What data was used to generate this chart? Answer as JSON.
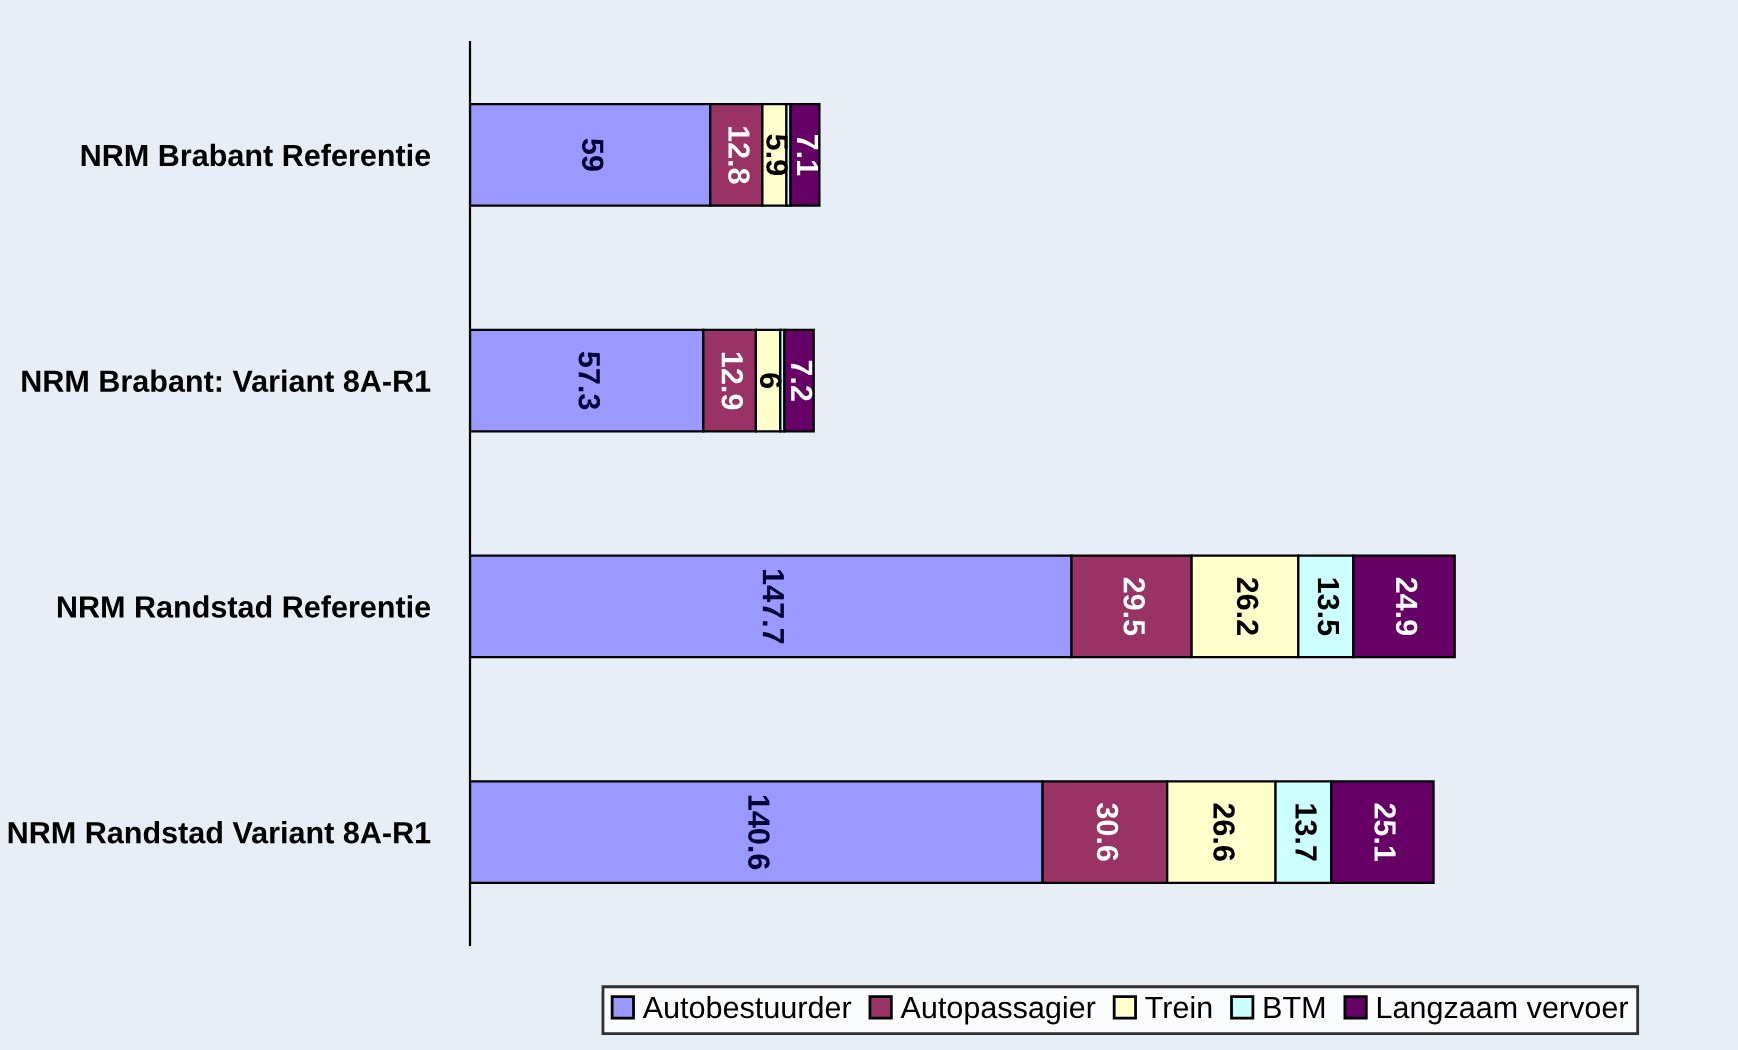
{
  "chart_data": {
    "type": "bar",
    "orientation": "horizontal",
    "stacked": true,
    "data_labels": true,
    "legend": "bottom",
    "grid": false,
    "categories": [
      "NRM Brabant Referentie",
      "NRM Brabant: Variant 8A-R1",
      "NRM Randstad Referentie",
      "NRM Randstad Variant 8A-R1"
    ],
    "series": [
      {
        "name": "Autobestuurder",
        "color": "#9999ff",
        "values": [
          59,
          57.3,
          147.7,
          140.6
        ]
      },
      {
        "name": "Autopassagier",
        "color": "#993366",
        "values": [
          12.8,
          12.9,
          29.5,
          30.6
        ]
      },
      {
        "name": "Trein",
        "color": "#ffffcc",
        "values": [
          5.9,
          6,
          26.2,
          26.6
        ]
      },
      {
        "name": "BTM",
        "color": "#ccffff",
        "values": [
          1,
          1,
          13.5,
          13.7
        ],
        "value_labels": [
          null,
          null,
          "13.5",
          "13.7"
        ]
      },
      {
        "name": "Langzaam vervoer",
        "color": "#660066",
        "values": [
          7.1,
          7.2,
          24.9,
          25.1
        ]
      }
    ]
  }
}
